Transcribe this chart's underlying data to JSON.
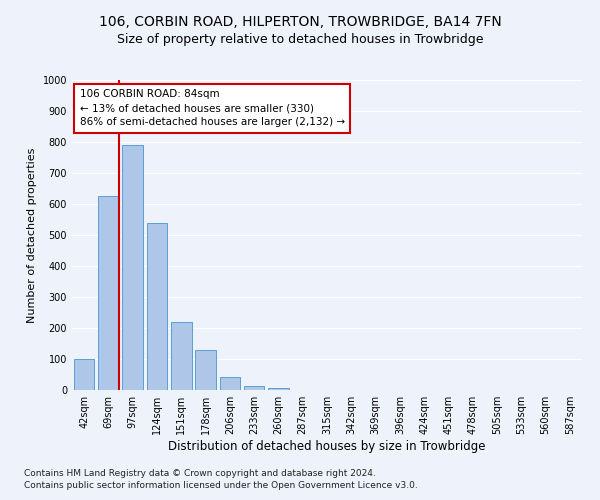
{
  "title_line1": "106, CORBIN ROAD, HILPERTON, TROWBRIDGE, BA14 7FN",
  "title_line2": "Size of property relative to detached houses in Trowbridge",
  "xlabel": "Distribution of detached houses by size in Trowbridge",
  "ylabel": "Number of detached properties",
  "bar_color": "#aec6e8",
  "bar_edge_color": "#5a9fd4",
  "categories": [
    "42sqm",
    "69sqm",
    "97sqm",
    "124sqm",
    "151sqm",
    "178sqm",
    "206sqm",
    "233sqm",
    "260sqm",
    "287sqm",
    "315sqm",
    "342sqm",
    "369sqm",
    "396sqm",
    "424sqm",
    "451sqm",
    "478sqm",
    "505sqm",
    "533sqm",
    "560sqm",
    "587sqm"
  ],
  "values": [
    100,
    625,
    790,
    540,
    220,
    130,
    42,
    13,
    8,
    0,
    0,
    0,
    0,
    0,
    0,
    0,
    0,
    0,
    0,
    0,
    0
  ],
  "ylim": [
    0,
    1000
  ],
  "yticks": [
    0,
    100,
    200,
    300,
    400,
    500,
    600,
    700,
    800,
    900,
    1000
  ],
  "vline_x_index": 1,
  "vline_color": "#cc0000",
  "annotation_text": "106 CORBIN ROAD: 84sqm\n← 13% of detached houses are smaller (330)\n86% of semi-detached houses are larger (2,132) →",
  "annotation_box_color": "#ffffff",
  "annotation_box_edge": "#cc0000",
  "footer_line1": "Contains HM Land Registry data © Crown copyright and database right 2024.",
  "footer_line2": "Contains public sector information licensed under the Open Government Licence v3.0.",
  "background_color": "#eef2fb",
  "grid_color": "#ffffff",
  "title1_fontsize": 10,
  "title2_fontsize": 9,
  "tick_fontsize": 7,
  "ylabel_fontsize": 8,
  "xlabel_fontsize": 8.5,
  "footer_fontsize": 6.5,
  "annot_fontsize": 7.5
}
